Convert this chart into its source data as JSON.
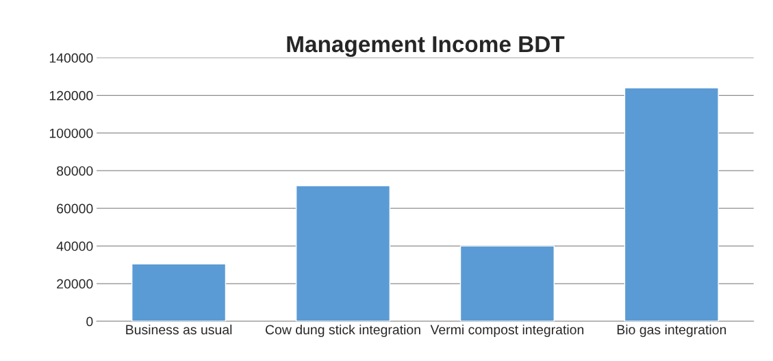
{
  "chart_data": {
    "type": "bar",
    "title": "Management Income BDT",
    "categories": [
      "Business as usual",
      "Cow dung stick integration",
      "Vermi compost integration",
      "Bio gas integration"
    ],
    "values": [
      30500,
      72000,
      40000,
      124000
    ],
    "color": "#5b9bd5",
    "ylim": [
      0,
      140000
    ],
    "yticks": [
      0,
      20000,
      40000,
      60000,
      80000,
      100000,
      120000,
      140000
    ],
    "grid": "y",
    "legend": false
  }
}
